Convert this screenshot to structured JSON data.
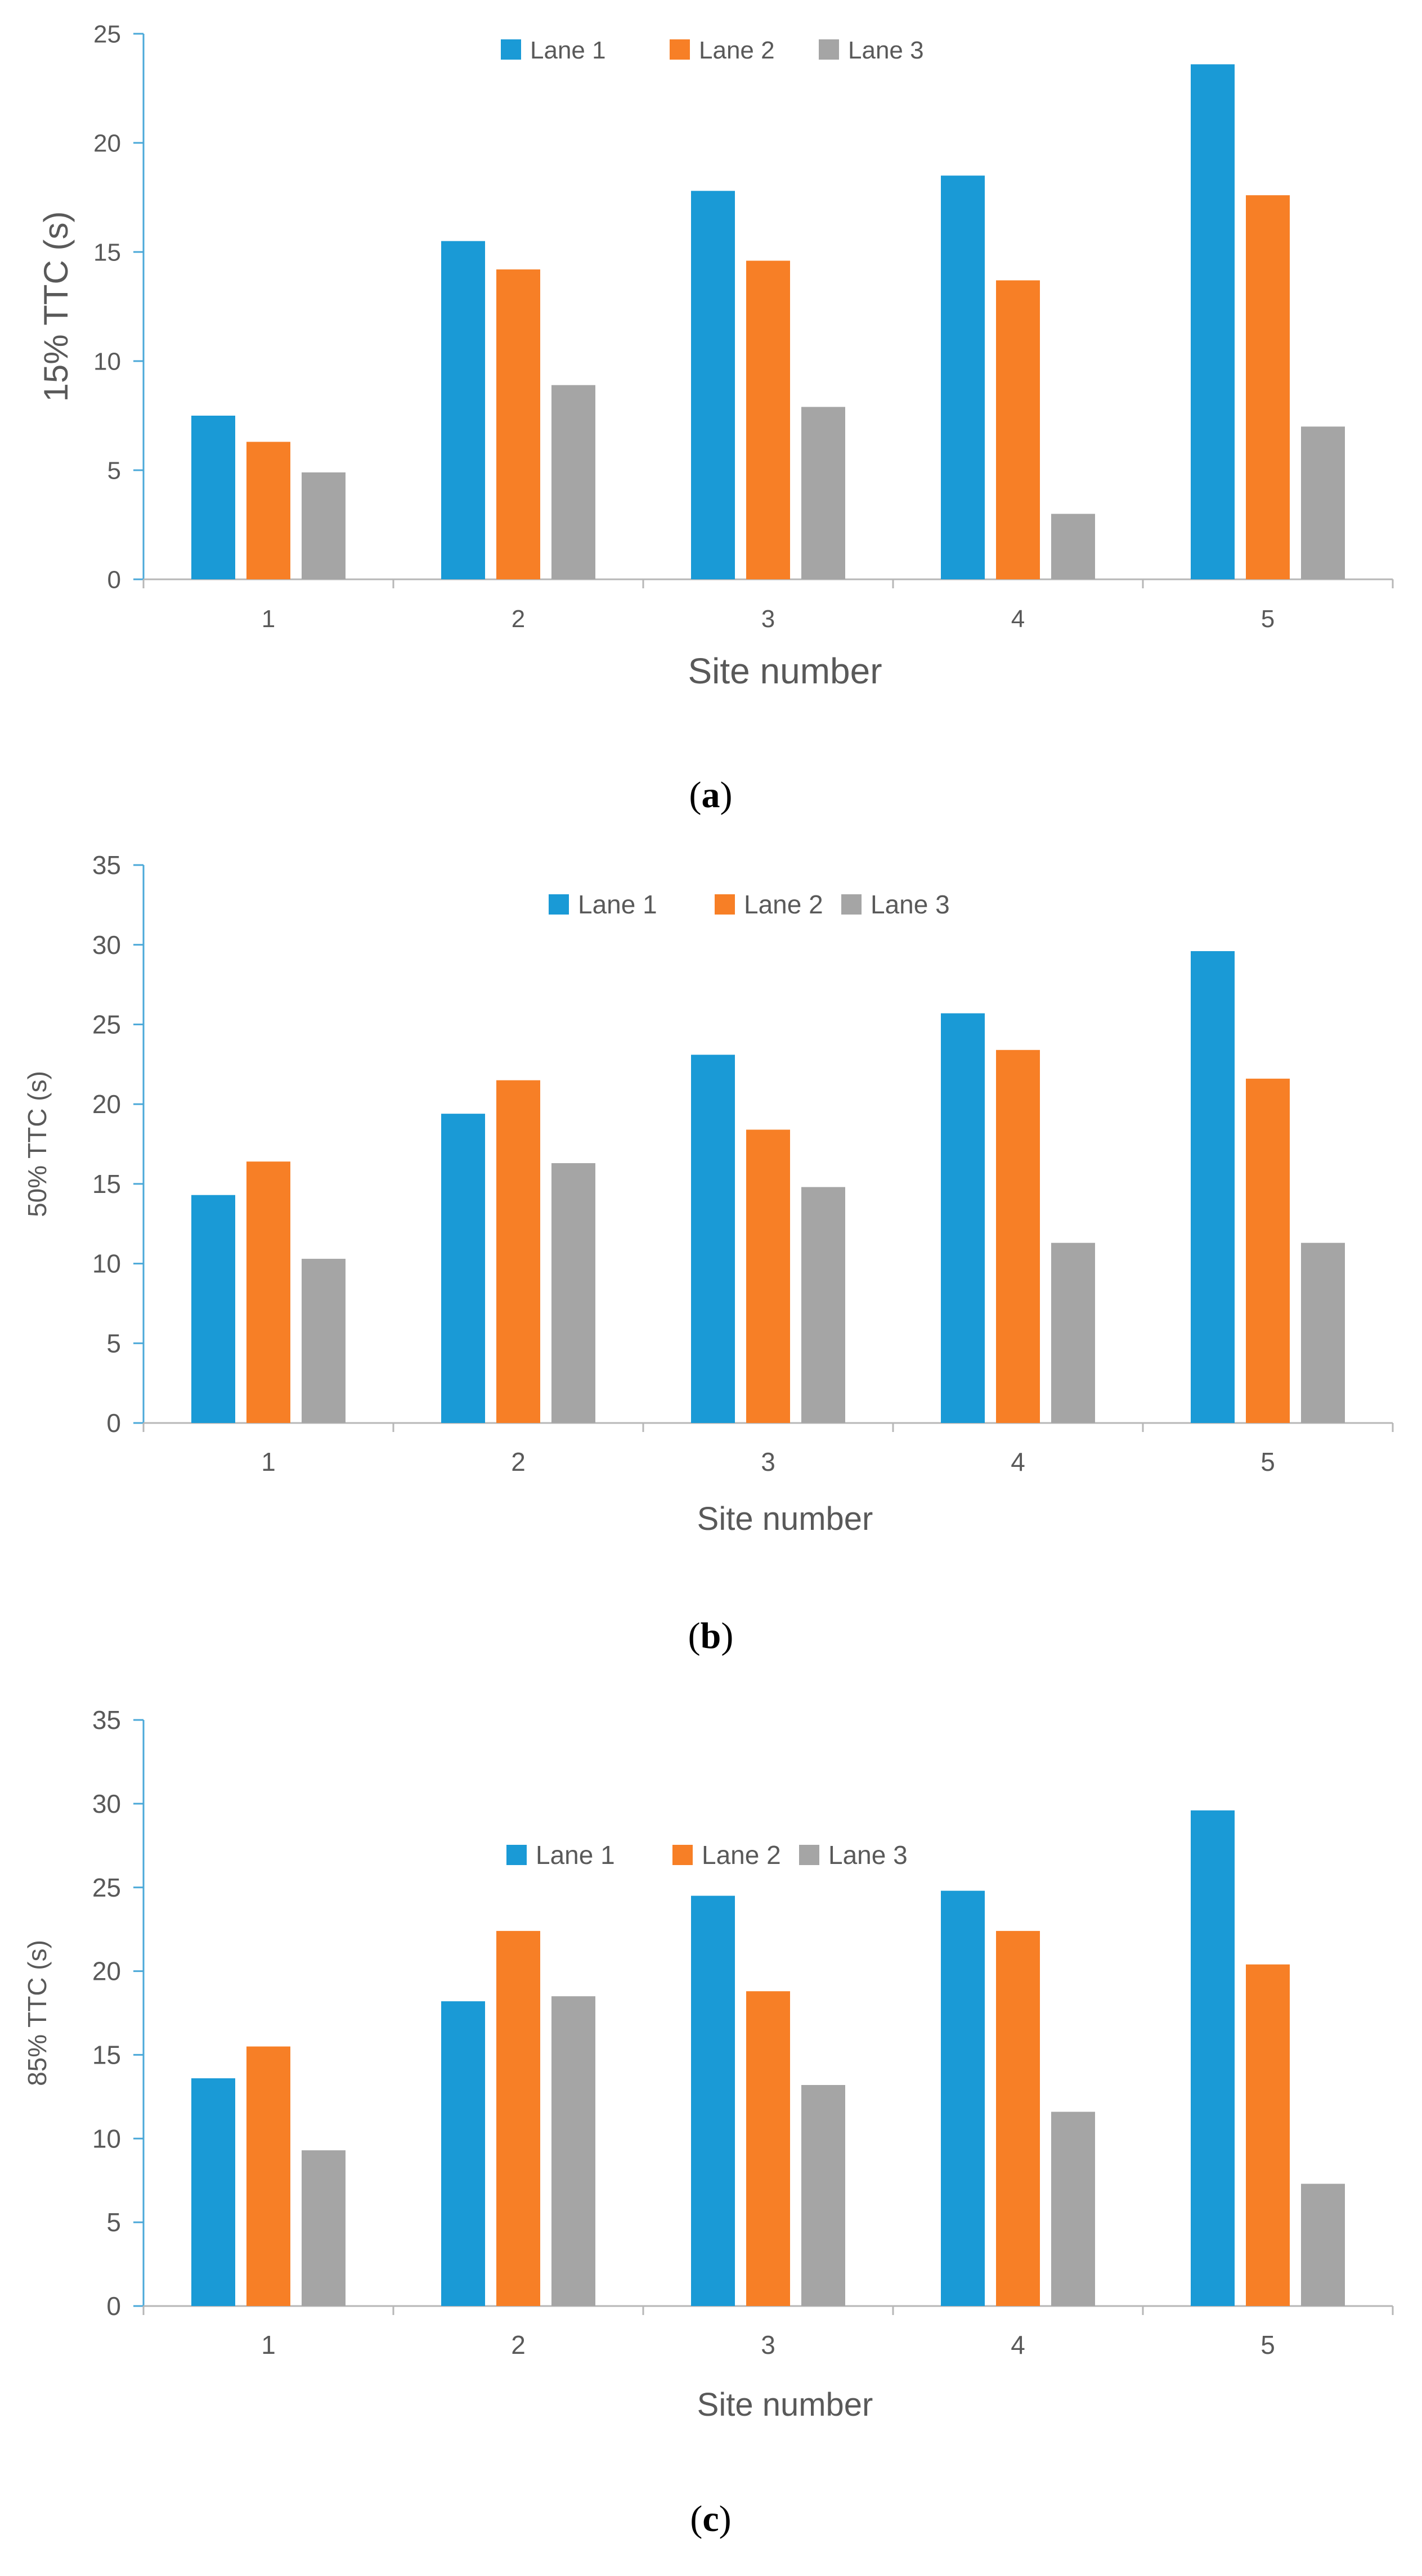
{
  "colors": {
    "lane1": "#1a9ad6",
    "lane2": "#f77f26",
    "lane3": "#a5a5a5",
    "axis": "#b7b7b7",
    "axis_left": "#4aa8d8"
  },
  "chart_data": [
    {
      "type": "bar",
      "panel": "a",
      "categories": [
        "1",
        "2",
        "3",
        "4",
        "5"
      ],
      "series": [
        {
          "name": "Lane 1",
          "values": [
            7.5,
            15.5,
            17.8,
            18.5,
            23.6
          ]
        },
        {
          "name": "Lane 2",
          "values": [
            6.3,
            14.2,
            14.6,
            13.7,
            17.6
          ]
        },
        {
          "name": "Lane 3",
          "values": [
            4.9,
            8.9,
            7.9,
            3.0,
            7.0
          ]
        }
      ],
      "xlabel": "Site number",
      "ylabel": "15% TTC (s)",
      "ylim": [
        0,
        25
      ],
      "yticks": [
        "0",
        "5",
        "10",
        "15",
        "20",
        "25"
      ],
      "legend_position": "top",
      "grid": false
    },
    {
      "type": "bar",
      "panel": "b",
      "categories": [
        "1",
        "2",
        "3",
        "4",
        "5"
      ],
      "series": [
        {
          "name": "Lane 1",
          "values": [
            14.3,
            19.4,
            23.1,
            25.7,
            29.6
          ]
        },
        {
          "name": "Lane 2",
          "values": [
            16.4,
            21.5,
            18.4,
            23.4,
            21.6
          ]
        },
        {
          "name": "Lane 3",
          "values": [
            10.3,
            16.3,
            14.8,
            11.3,
            11.3
          ]
        }
      ],
      "xlabel": "Site number",
      "ylabel": "50% TTC (s)",
      "ylim": [
        0,
        35
      ],
      "yticks": [
        "0",
        "5",
        "10",
        "15",
        "20",
        "25",
        "30",
        "35"
      ],
      "legend_position": "top",
      "grid": false
    },
    {
      "type": "bar",
      "panel": "c",
      "categories": [
        "1",
        "2",
        "3",
        "4",
        "5"
      ],
      "series": [
        {
          "name": "Lane 1",
          "values": [
            13.6,
            18.2,
            24.5,
            24.8,
            29.6
          ]
        },
        {
          "name": "Lane 2",
          "values": [
            15.5,
            22.4,
            18.8,
            22.4,
            20.4
          ]
        },
        {
          "name": "Lane 3",
          "values": [
            9.3,
            18.5,
            13.2,
            11.6,
            7.3
          ]
        }
      ],
      "xlabel": "Site number",
      "ylabel": "85% TTC (s)",
      "ylim": [
        0,
        35
      ],
      "yticks": [
        "0",
        "5",
        "10",
        "15",
        "20",
        "25",
        "30",
        "35"
      ],
      "legend_position": "top",
      "grid": false
    }
  ],
  "panel_labels": [
    {
      "open": "(",
      "letter": "a",
      "close": ")"
    },
    {
      "open": "(",
      "letter": "b",
      "close": ")"
    },
    {
      "open": "(",
      "letter": "c",
      "close": ")"
    }
  ]
}
